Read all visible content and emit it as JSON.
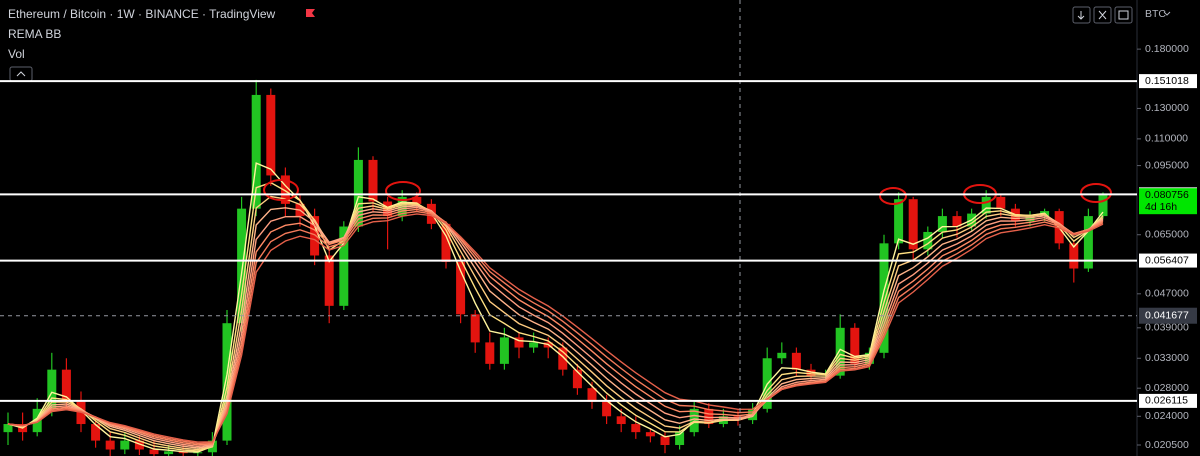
{
  "chart_data": {
    "type": "candlestick",
    "title": "Ethereum / Bitcoin · 1W · BINANCE · TradingView",
    "indicators": [
      "REMA BB",
      "Vol"
    ],
    "currency": "BTC",
    "log_scale": true,
    "ylim": [
      0.0193,
      0.2357
    ],
    "yticks": [
      {
        "value": 0.18,
        "label": "0.180000"
      },
      {
        "value": 0.13,
        "label": "0.130000"
      },
      {
        "value": 0.11,
        "label": "0.110000"
      },
      {
        "value": 0.095,
        "label": "0.095000"
      },
      {
        "value": 0.065,
        "label": "0.065000"
      },
      {
        "value": 0.047,
        "label": "0.047000"
      },
      {
        "value": 0.039,
        "label": "0.039000"
      },
      {
        "value": 0.033,
        "label": "0.033000"
      },
      {
        "value": 0.028,
        "label": "0.028000"
      },
      {
        "value": 0.024,
        "label": "0.024000"
      },
      {
        "value": 0.0205,
        "label": "0.020500"
      }
    ],
    "levels": [
      0.151018,
      0.081119,
      0.056407,
      0.026115
    ],
    "crosshair": 0.041677,
    "last_price": 0.080756,
    "countdown": "4d 16h",
    "up_color": "#22c422",
    "down_color": "#e3140f",
    "open": [
      0.022,
      0.023,
      0.022,
      0.025,
      0.031,
      0.026,
      0.023,
      0.021,
      0.02,
      0.021,
      0.02,
      0.0195,
      0.0198,
      0.0196,
      0.0197,
      0.021,
      0.04,
      0.075,
      0.14,
      0.09,
      0.077,
      0.072,
      0.058,
      0.044,
      0.068,
      0.098,
      0.078,
      0.072,
      0.08,
      0.077,
      0.069,
      0.056,
      0.042,
      0.036,
      0.032,
      0.037,
      0.035,
      0.036,
      0.035,
      0.031,
      0.028,
      0.026,
      0.024,
      0.023,
      0.022,
      0.0215,
      0.0205,
      0.022,
      0.025,
      0.023,
      0.024,
      0.0235,
      0.025,
      0.033,
      0.034,
      0.031,
      0.03,
      0.03,
      0.039,
      0.032,
      0.034,
      0.062,
      0.079,
      0.06,
      0.066,
      0.072,
      0.068,
      0.073,
      0.08,
      0.075,
      0.07,
      0.072,
      0.074,
      0.062,
      0.054,
      0.072
    ],
    "high": [
      0.0245,
      0.0245,
      0.0265,
      0.034,
      0.033,
      0.0275,
      0.024,
      0.022,
      0.022,
      0.0215,
      0.021,
      0.0205,
      0.0205,
      0.0203,
      0.022,
      0.043,
      0.08,
      0.152,
      0.145,
      0.094,
      0.081,
      0.075,
      0.061,
      0.07,
      0.105,
      0.1,
      0.08,
      0.083,
      0.082,
      0.079,
      0.07,
      0.058,
      0.043,
      0.038,
      0.039,
      0.038,
      0.038,
      0.037,
      0.036,
      0.032,
      0.029,
      0.027,
      0.025,
      0.024,
      0.0225,
      0.022,
      0.0228,
      0.026,
      0.0258,
      0.025,
      0.0248,
      0.0258,
      0.035,
      0.036,
      0.035,
      0.032,
      0.031,
      0.042,
      0.04,
      0.035,
      0.065,
      0.082,
      0.08,
      0.068,
      0.075,
      0.074,
      0.075,
      0.083,
      0.081,
      0.077,
      0.074,
      0.075,
      0.075,
      0.063,
      0.075,
      0.082
    ],
    "low": [
      0.0205,
      0.021,
      0.0215,
      0.024,
      0.025,
      0.022,
      0.0202,
      0.0193,
      0.0195,
      0.0194,
      0.019,
      0.019,
      0.0191,
      0.0192,
      0.0193,
      0.0205,
      0.038,
      0.072,
      0.085,
      0.072,
      0.068,
      0.055,
      0.04,
      0.043,
      0.066,
      0.074,
      0.06,
      0.07,
      0.074,
      0.067,
      0.054,
      0.04,
      0.034,
      0.031,
      0.031,
      0.033,
      0.034,
      0.033,
      0.03,
      0.027,
      0.025,
      0.023,
      0.022,
      0.0212,
      0.0208,
      0.0196,
      0.02,
      0.0215,
      0.0225,
      0.0226,
      0.0228,
      0.023,
      0.0245,
      0.032,
      0.03,
      0.0292,
      0.0292,
      0.0295,
      0.031,
      0.031,
      0.033,
      0.06,
      0.056,
      0.058,
      0.064,
      0.064,
      0.066,
      0.071,
      0.072,
      0.068,
      0.068,
      0.07,
      0.06,
      0.05,
      0.053,
      0.071
    ],
    "close": [
      0.023,
      0.022,
      0.025,
      0.031,
      0.026,
      0.023,
      0.021,
      0.02,
      0.021,
      0.02,
      0.0195,
      0.0198,
      0.0196,
      0.0197,
      0.021,
      0.04,
      0.075,
      0.14,
      0.09,
      0.077,
      0.072,
      0.058,
      0.044,
      0.068,
      0.098,
      0.078,
      0.072,
      0.08,
      0.077,
      0.069,
      0.056,
      0.042,
      0.036,
      0.032,
      0.037,
      0.035,
      0.036,
      0.035,
      0.031,
      0.028,
      0.026,
      0.024,
      0.023,
      0.022,
      0.0215,
      0.0205,
      0.022,
      0.025,
      0.023,
      0.024,
      0.0235,
      0.025,
      0.033,
      0.034,
      0.031,
      0.03,
      0.03,
      0.039,
      0.032,
      0.034,
      0.062,
      0.079,
      0.06,
      0.066,
      0.072,
      0.068,
      0.073,
      0.08,
      0.075,
      0.07,
      0.072,
      0.074,
      0.062,
      0.054,
      0.072,
      0.0808
    ]
  }
}
